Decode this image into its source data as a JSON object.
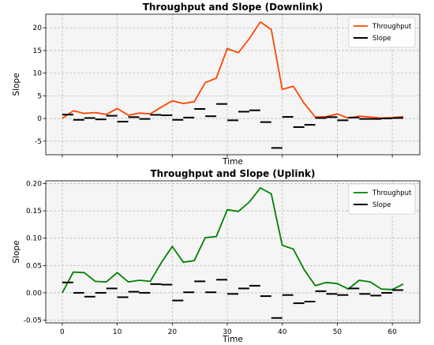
{
  "chart_data": [
    {
      "type": "line",
      "title": "Throughput and Slope (Downlink)",
      "xlabel": "Time",
      "ylabel": "Slope",
      "xlim": [
        -3,
        65
      ],
      "ylim": [
        -8,
        23
      ],
      "xticks": [
        0,
        10,
        20,
        30,
        40,
        50,
        60
      ],
      "show_xtick_labels": false,
      "yticks": [
        -5,
        0,
        5,
        10,
        15,
        20
      ],
      "grid": true,
      "legend_position": "top-right",
      "background": "#f5f5f5",
      "series": [
        {
          "name": "Throughput",
          "kind": "line",
          "color": "#ff4500",
          "x": [
            0,
            2,
            4,
            6,
            8,
            10,
            12,
            14,
            16,
            18,
            20,
            22,
            24,
            26,
            28,
            30,
            32,
            34,
            36,
            38,
            40,
            42,
            44,
            46,
            48,
            50,
            52,
            54,
            56,
            58,
            60,
            62
          ],
          "y": [
            0.0,
            1.7,
            1.1,
            1.3,
            0.9,
            2.2,
            0.7,
            1.2,
            1.0,
            2.5,
            3.9,
            3.3,
            3.7,
            7.9,
            8.9,
            15.4,
            14.5,
            17.6,
            21.3,
            19.6,
            6.4,
            7.1,
            3.3,
            0.3,
            0.4,
            1.0,
            0.1,
            0.5,
            0.3,
            0.1,
            0.2,
            0.4
          ]
        },
        {
          "name": "Slope",
          "kind": "segments",
          "color": "#000000",
          "x0": [
            0,
            2,
            4,
            6,
            8,
            10,
            12,
            14,
            16,
            18,
            20,
            22,
            24,
            26,
            28,
            30,
            32,
            34,
            36,
            38,
            40,
            42,
            44,
            46,
            48,
            50,
            52,
            54,
            56,
            58,
            60
          ],
          "x1": [
            2,
            4,
            6,
            8,
            10,
            12,
            14,
            16,
            18,
            20,
            22,
            24,
            26,
            28,
            30,
            32,
            34,
            36,
            38,
            40,
            42,
            44,
            46,
            48,
            50,
            52,
            54,
            56,
            58,
            60,
            62
          ],
          "y": [
            0.85,
            -0.3,
            0.1,
            -0.2,
            0.6,
            -0.7,
            0.3,
            -0.1,
            0.8,
            0.7,
            -0.3,
            0.2,
            2.1,
            0.5,
            3.2,
            -0.4,
            1.5,
            1.8,
            -0.8,
            -6.5,
            0.35,
            -1.9,
            -1.4,
            0.1,
            0.3,
            -0.4,
            0.2,
            -0.1,
            -0.1,
            0.0,
            0.1
          ]
        }
      ]
    },
    {
      "type": "line",
      "title": "Throughput and Slope (Uplink)",
      "xlabel": "Time",
      "ylabel": "Slope",
      "xlim": [
        -3,
        65
      ],
      "ylim": [
        -0.055,
        0.205
      ],
      "xticks": [
        0,
        10,
        20,
        30,
        40,
        50,
        60
      ],
      "show_xtick_labels": true,
      "yticks": [
        -0.05,
        0.0,
        0.05,
        0.1,
        0.15,
        0.2
      ],
      "ytick_labels": [
        "-0.05",
        "0.00",
        "0.05",
        "0.10",
        "0.15",
        "0.20"
      ],
      "grid": true,
      "legend_position": "top-right",
      "background": "#f5f5f5",
      "series": [
        {
          "name": "Throughput",
          "kind": "line",
          "color": "#008000",
          "x": [
            0,
            2,
            4,
            6,
            8,
            10,
            12,
            14,
            16,
            18,
            20,
            22,
            24,
            26,
            28,
            30,
            32,
            34,
            36,
            38,
            40,
            42,
            44,
            46,
            48,
            50,
            52,
            54,
            56,
            58,
            60,
            62
          ],
          "y": [
            0.0,
            0.038,
            0.037,
            0.021,
            0.02,
            0.037,
            0.02,
            0.023,
            0.021,
            0.055,
            0.085,
            0.056,
            0.059,
            0.101,
            0.103,
            0.152,
            0.149,
            0.166,
            0.192,
            0.181,
            0.087,
            0.08,
            0.042,
            0.013,
            0.019,
            0.017,
            0.007,
            0.023,
            0.02,
            0.007,
            0.006,
            0.016
          ]
        },
        {
          "name": "Slope",
          "kind": "segments",
          "color": "#000000",
          "x0": [
            0,
            2,
            4,
            6,
            8,
            10,
            12,
            14,
            16,
            18,
            20,
            22,
            24,
            26,
            28,
            30,
            32,
            34,
            36,
            38,
            40,
            42,
            44,
            46,
            48,
            50,
            52,
            54,
            56,
            58,
            60
          ],
          "x1": [
            2,
            4,
            6,
            8,
            10,
            12,
            14,
            16,
            18,
            20,
            22,
            24,
            26,
            28,
            30,
            32,
            34,
            36,
            38,
            40,
            42,
            44,
            46,
            48,
            50,
            52,
            54,
            56,
            58,
            60,
            62
          ],
          "y": [
            0.019,
            0.0,
            -0.007,
            0.0,
            0.008,
            -0.008,
            0.002,
            0.0,
            0.016,
            0.015,
            -0.014,
            0.001,
            0.021,
            0.001,
            0.024,
            -0.002,
            0.008,
            0.013,
            -0.006,
            -0.046,
            -0.004,
            -0.019,
            -0.016,
            0.003,
            -0.002,
            -0.004,
            0.008,
            -0.002,
            -0.005,
            0.0,
            0.005
          ]
        }
      ]
    }
  ]
}
